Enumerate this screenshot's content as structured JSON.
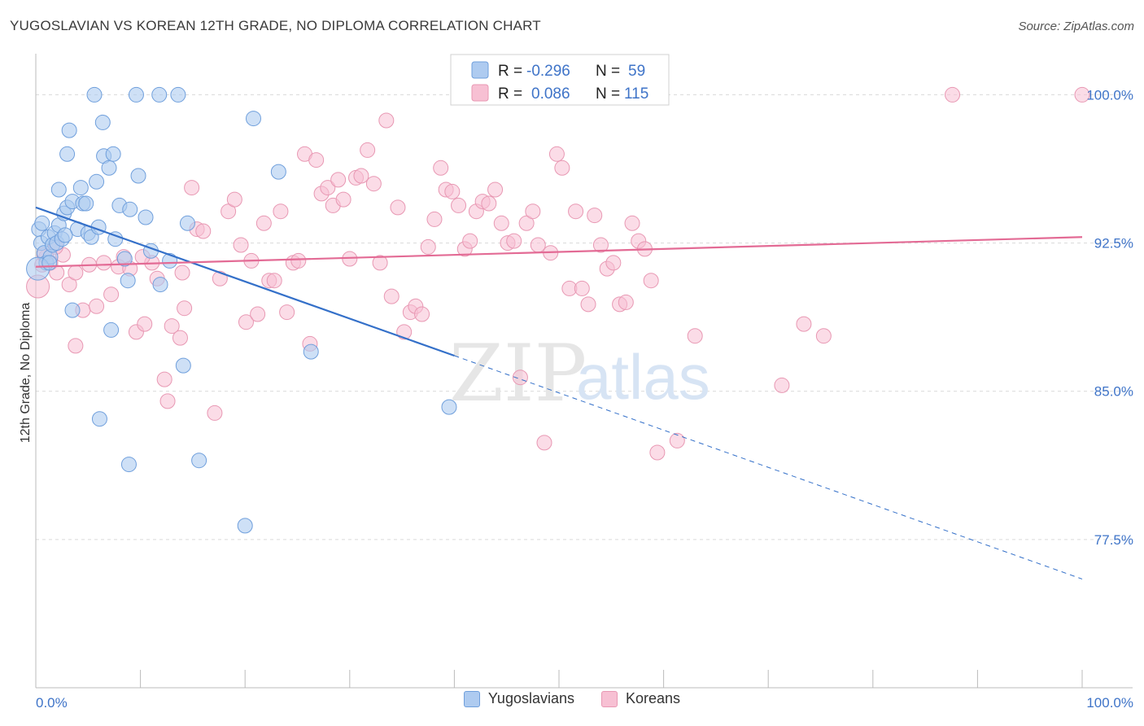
{
  "header": {
    "title": "YUGOSLAVIAN VS KOREAN 12TH GRADE, NO DIPLOMA CORRELATION CHART",
    "source": "Source: ZipAtlas.com"
  },
  "watermark": {
    "zip": "ZIP",
    "atlas": "atlas"
  },
  "colors": {
    "blue_fill": "#aecbf0",
    "blue_stroke": "#6f9fdc",
    "blue_line": "#3470c9",
    "pink_fill": "#f7c0d3",
    "pink_stroke": "#e898b3",
    "pink_line": "#e36b95",
    "tick_label": "#3f74c8",
    "grid": "#d9d9d9"
  },
  "legend_top": {
    "rows": [
      {
        "r_label": "R =",
        "r_value": "-0.296",
        "n_label": "N =",
        "n_value": "59",
        "series": "blue"
      },
      {
        "r_label": "R =",
        "r_value": "0.086",
        "n_label": "N =",
        "n_value": "115",
        "series": "pink"
      }
    ]
  },
  "chart_data": {
    "type": "scatter",
    "title": "YUGOSLAVIAN VS KOREAN 12TH GRADE, NO DIPLOMA CORRELATION CHART",
    "xlabel": "",
    "ylabel": "12th Grade, No Diploma",
    "xlim": [
      0,
      100
    ],
    "ylim": [
      70.0,
      101.5
    ],
    "x_tick_labels": [
      "0.0%",
      "100.0%"
    ],
    "y_ticks": [
      77.5,
      85.0,
      92.5,
      100.0
    ],
    "y_tick_labels": [
      "77.5%",
      "85.0%",
      "92.5%",
      "100.0%"
    ],
    "grid": "horizontal dashed",
    "legend": "bottom-center",
    "series": [
      {
        "name": "Yugoslavians",
        "color": "#aecbf0",
        "trend": {
          "x": [
            0,
            40
          ],
          "y": [
            94.3,
            86.8
          ],
          "dashed_to": [
            100,
            75.5
          ]
        },
        "points": [
          [
            0.3,
            93.2
          ],
          [
            0.5,
            92.5
          ],
          [
            0.6,
            93.5
          ],
          [
            0.8,
            92.0
          ],
          [
            1.0,
            91.5
          ],
          [
            1.2,
            92.8
          ],
          [
            1.4,
            91.8
          ],
          [
            1.6,
            92.4
          ],
          [
            1.8,
            93.0
          ],
          [
            2.0,
            92.5
          ],
          [
            2.2,
            93.4
          ],
          [
            2.5,
            92.7
          ],
          [
            2.7,
            94.0
          ],
          [
            3.0,
            94.3
          ],
          [
            3.5,
            94.6
          ],
          [
            4.0,
            93.2
          ],
          [
            4.5,
            94.5
          ],
          [
            5.0,
            93.0
          ],
          [
            5.3,
            92.8
          ],
          [
            5.8,
            95.6
          ],
          [
            6.5,
            96.9
          ],
          [
            7.0,
            96.3
          ],
          [
            8.0,
            94.4
          ],
          [
            9.0,
            94.2
          ],
          [
            9.8,
            95.9
          ],
          [
            10.5,
            93.8
          ],
          [
            3.0,
            97.0
          ],
          [
            4.3,
            95.3
          ],
          [
            7.4,
            97.0
          ],
          [
            3.2,
            98.2
          ],
          [
            6.4,
            98.6
          ],
          [
            5.6,
            100.0
          ],
          [
            9.6,
            100.0
          ],
          [
            11.8,
            100.0
          ],
          [
            13.6,
            100.0
          ],
          [
            20.8,
            98.8
          ],
          [
            23.2,
            96.1
          ],
          [
            2.2,
            95.2
          ],
          [
            4.8,
            94.5
          ],
          [
            7.6,
            92.7
          ],
          [
            11.0,
            92.1
          ],
          [
            12.8,
            91.6
          ],
          [
            14.5,
            93.5
          ],
          [
            8.5,
            91.7
          ],
          [
            8.8,
            90.6
          ],
          [
            11.9,
            90.4
          ],
          [
            3.5,
            89.1
          ],
          [
            7.2,
            88.1
          ],
          [
            14.1,
            86.3
          ],
          [
            26.3,
            87.0
          ],
          [
            6.1,
            83.6
          ],
          [
            8.9,
            81.3
          ],
          [
            15.6,
            81.5
          ],
          [
            20.0,
            78.2
          ],
          [
            39.5,
            84.2
          ],
          [
            0.2,
            91.2
          ],
          [
            1.3,
            91.5
          ],
          [
            2.8,
            92.9
          ],
          [
            6.0,
            93.3
          ]
        ]
      },
      {
        "name": "Koreans",
        "color": "#f7c0d3",
        "trend": {
          "x": [
            0,
            100
          ],
          "y": [
            91.3,
            92.8
          ]
        },
        "points": [
          [
            0.2,
            90.3
          ],
          [
            0.6,
            91.4
          ],
          [
            1.0,
            91.8
          ],
          [
            1.4,
            91.5
          ],
          [
            2.0,
            91.0
          ],
          [
            2.6,
            91.9
          ],
          [
            3.2,
            90.4
          ],
          [
            3.8,
            91.0
          ],
          [
            4.5,
            89.1
          ],
          [
            5.1,
            91.4
          ],
          [
            5.8,
            89.3
          ],
          [
            6.5,
            91.5
          ],
          [
            7.2,
            89.9
          ],
          [
            7.9,
            91.3
          ],
          [
            8.4,
            91.8
          ],
          [
            9.0,
            91.2
          ],
          [
            9.6,
            88.0
          ],
          [
            10.4,
            88.4
          ],
          [
            11.1,
            91.5
          ],
          [
            11.6,
            90.7
          ],
          [
            12.3,
            85.6
          ],
          [
            12.6,
            84.5
          ],
          [
            13.0,
            88.3
          ],
          [
            13.8,
            87.7
          ],
          [
            14.2,
            89.2
          ],
          [
            14.9,
            95.3
          ],
          [
            15.4,
            93.2
          ],
          [
            16.0,
            93.1
          ],
          [
            17.1,
            83.9
          ],
          [
            17.6,
            90.7
          ],
          [
            18.4,
            94.1
          ],
          [
            19.0,
            94.7
          ],
          [
            19.6,
            92.4
          ],
          [
            20.1,
            88.5
          ],
          [
            20.6,
            91.6
          ],
          [
            21.2,
            88.9
          ],
          [
            21.8,
            93.5
          ],
          [
            22.3,
            90.6
          ],
          [
            22.8,
            90.6
          ],
          [
            23.4,
            94.1
          ],
          [
            24.0,
            89.0
          ],
          [
            24.6,
            91.5
          ],
          [
            25.1,
            91.6
          ],
          [
            25.7,
            97.0
          ],
          [
            26.2,
            87.4
          ],
          [
            26.8,
            96.7
          ],
          [
            27.3,
            95.0
          ],
          [
            27.9,
            95.3
          ],
          [
            28.4,
            94.4
          ],
          [
            28.9,
            95.7
          ],
          [
            29.4,
            94.7
          ],
          [
            30.0,
            91.7
          ],
          [
            30.6,
            95.8
          ],
          [
            31.1,
            95.9
          ],
          [
            31.7,
            97.2
          ],
          [
            32.3,
            95.5
          ],
          [
            32.9,
            91.5
          ],
          [
            33.5,
            98.7
          ],
          [
            34.0,
            89.8
          ],
          [
            34.6,
            94.3
          ],
          [
            35.2,
            88.0
          ],
          [
            35.8,
            89.0
          ],
          [
            36.3,
            89.3
          ],
          [
            36.9,
            88.9
          ],
          [
            37.5,
            92.3
          ],
          [
            38.1,
            93.7
          ],
          [
            38.7,
            96.3
          ],
          [
            39.2,
            95.2
          ],
          [
            39.8,
            95.1
          ],
          [
            40.4,
            94.4
          ],
          [
            41.0,
            92.2
          ],
          [
            41.5,
            92.6
          ],
          [
            42.1,
            94.1
          ],
          [
            42.7,
            94.6
          ],
          [
            43.3,
            94.5
          ],
          [
            43.9,
            95.2
          ],
          [
            44.5,
            93.5
          ],
          [
            45.1,
            92.5
          ],
          [
            45.7,
            92.6
          ],
          [
            46.3,
            85.7
          ],
          [
            46.9,
            93.5
          ],
          [
            47.5,
            94.1
          ],
          [
            48.0,
            92.4
          ],
          [
            48.6,
            82.4
          ],
          [
            49.2,
            92.0
          ],
          [
            49.8,
            97.0
          ],
          [
            50.3,
            96.3
          ],
          [
            51.0,
            90.2
          ],
          [
            51.6,
            94.1
          ],
          [
            52.2,
            90.2
          ],
          [
            52.8,
            89.4
          ],
          [
            53.4,
            93.9
          ],
          [
            54.0,
            92.4
          ],
          [
            54.6,
            91.2
          ],
          [
            55.2,
            91.5
          ],
          [
            55.8,
            89.4
          ],
          [
            56.4,
            89.5
          ],
          [
            57.0,
            93.5
          ],
          [
            57.6,
            92.6
          ],
          [
            58.2,
            92.2
          ],
          [
            58.8,
            90.6
          ],
          [
            59.4,
            81.9
          ],
          [
            61.3,
            82.5
          ],
          [
            63.0,
            87.8
          ],
          [
            71.3,
            85.3
          ],
          [
            73.4,
            88.4
          ],
          [
            75.3,
            87.8
          ],
          [
            87.6,
            100.0
          ],
          [
            100.0,
            100.0
          ],
          [
            41.8,
            100.0
          ],
          [
            0.8,
            91.9
          ],
          [
            1.9,
            92.3
          ],
          [
            3.8,
            87.3
          ],
          [
            10.2,
            91.8
          ],
          [
            14.0,
            91.0
          ]
        ]
      }
    ]
  },
  "bottom_legend": {
    "items": [
      "Yugoslavians",
      "Koreans"
    ]
  }
}
